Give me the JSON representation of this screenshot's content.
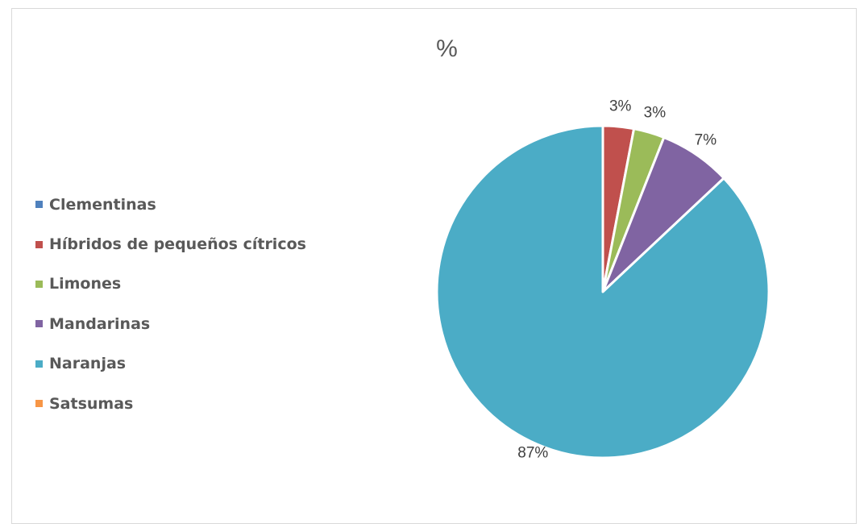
{
  "chart_data": {
    "type": "pie",
    "title": "%",
    "categories": [
      "Clementinas",
      "Híbridos de pequeños cítricos",
      "Limones",
      "Mandarinas",
      "Naranjas",
      "Satsumas"
    ],
    "values": [
      0,
      3,
      3,
      7,
      87,
      0
    ],
    "data_labels": [
      "",
      "3%",
      "3%",
      "7%",
      "87%",
      ""
    ],
    "colors": [
      "#4F81BD",
      "#C0504D",
      "#9BBB59",
      "#8064A2",
      "#4BACC6",
      "#F79646"
    ],
    "legend_position": "left",
    "start_angle_deg": 0,
    "direction": "clockwise"
  }
}
